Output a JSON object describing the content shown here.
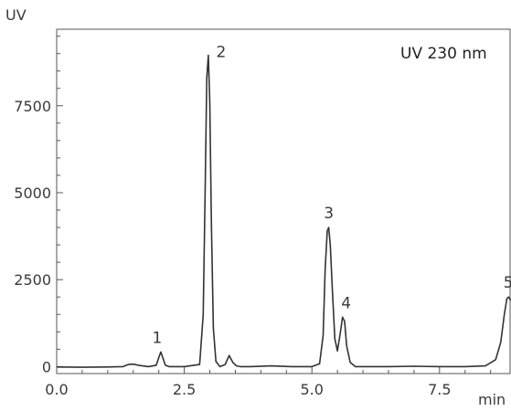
{
  "chart_data": {
    "type": "line",
    "ylabel": "UV",
    "xlabel": "min",
    "annotation": "UV 230 nm",
    "xlim": [
      0,
      8.9
    ],
    "ylim": [
      -200,
      9700
    ],
    "x_ticks": [
      {
        "value": 0.0,
        "label": "0.0"
      },
      {
        "value": 2.5,
        "label": "2.5"
      },
      {
        "value": 5.0,
        "label": "5.0"
      },
      {
        "value": 7.5,
        "label": "7.5"
      }
    ],
    "y_ticks": [
      {
        "value": 0,
        "label": "0"
      },
      {
        "value": 2500,
        "label": "2500"
      },
      {
        "value": 5000,
        "label": "5000"
      },
      {
        "value": 7500,
        "label": "7500"
      }
    ],
    "peaks": [
      {
        "label": "1",
        "x": 2.04,
        "y": 420
      },
      {
        "label": "2",
        "x": 2.97,
        "y": 8950
      },
      {
        "label": "3",
        "x": 5.33,
        "y": 4000
      },
      {
        "label": "4",
        "x": 5.6,
        "y": 1420
      },
      {
        "label": "5",
        "x": 8.85,
        "y": 2000
      }
    ],
    "series": [
      {
        "x": [
          0.0,
          0.5,
          1.0,
          1.3,
          1.4,
          1.5,
          1.6,
          1.8,
          1.95,
          2.0,
          2.04,
          2.08,
          2.13,
          2.2,
          2.5,
          2.8,
          2.87,
          2.91,
          2.94,
          2.97,
          3.0,
          3.03,
          3.07,
          3.12,
          3.2,
          3.3,
          3.38,
          3.45,
          3.52,
          3.6,
          3.8,
          4.2,
          4.6,
          5.0,
          5.15,
          5.22,
          5.26,
          5.3,
          5.33,
          5.36,
          5.4,
          5.45,
          5.5,
          5.55,
          5.6,
          5.64,
          5.68,
          5.75,
          5.85,
          6.0,
          6.5,
          7.0,
          7.5,
          8.0,
          8.4,
          8.6,
          8.7,
          8.77,
          8.82,
          8.85,
          8.9
        ],
        "y": [
          -10,
          -20,
          -10,
          0,
          60,
          70,
          40,
          0,
          40,
          260,
          420,
          250,
          40,
          0,
          0,
          60,
          1500,
          5200,
          8300,
          8950,
          7600,
          4200,
          1100,
          150,
          0,
          60,
          320,
          120,
          20,
          0,
          0,
          20,
          0,
          0,
          80,
          900,
          2800,
          3900,
          4000,
          3500,
          2200,
          800,
          450,
          900,
          1420,
          1300,
          600,
          120,
          0,
          0,
          0,
          10,
          0,
          0,
          20,
          200,
          700,
          1500,
          1950,
          2000,
          1900
        ]
      }
    ]
  }
}
